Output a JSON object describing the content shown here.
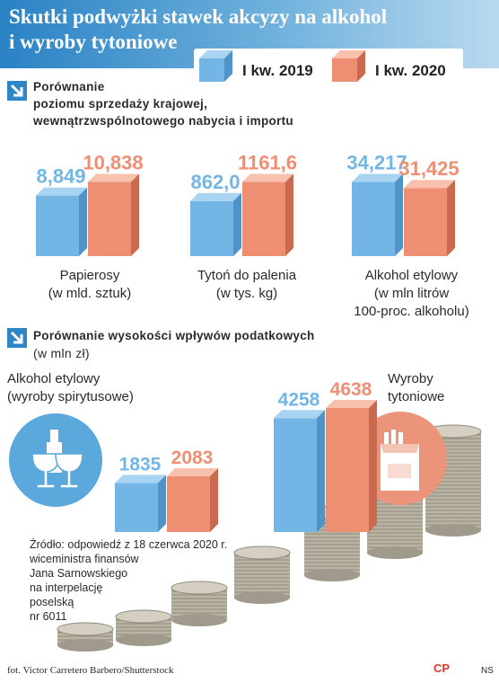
{
  "title": {
    "line1": "Skutki podwyżki stawek akcyzy na alkohol",
    "line2": "i wyroby tytoniowe"
  },
  "legend": [
    {
      "label": "I kw. 2019",
      "color": "#73b6e6"
    },
    {
      "label": "I kw. 2020",
      "color": "#ee8f74"
    }
  ],
  "section1": {
    "line1": "Porównanie",
    "line2": "poziomu sprzedaży krajowej,",
    "line3": "wewnątrzwspólnotowego nabycia i importu"
  },
  "section2": {
    "line1": "Porównanie wysokości wpływów podatkowych",
    "line2": "(w mln zł)"
  },
  "chart_data": [
    {
      "type": "bar",
      "series_names": [
        "I kw. 2019",
        "I kw. 2020"
      ],
      "groups": [
        {
          "label1": "Papierosy",
          "label2": "(w mld. sztuk)",
          "label3": "",
          "values": [
            8.849,
            10.838
          ],
          "display": [
            "8,849",
            "10,838"
          ]
        },
        {
          "label1": "Tytoń do palenia",
          "label2": "(w tys. kg)",
          "label3": "",
          "values": [
            862.0,
            1161.6
          ],
          "display": [
            "862,0",
            "1161,6"
          ]
        },
        {
          "label1": "Alkohol etylowy",
          "label2": "(w mln litrów",
          "label3": "100-proc. alkoholu)",
          "values": [
            34.217,
            31.425
          ],
          "display": [
            "34,217",
            "31,425"
          ]
        }
      ]
    },
    {
      "type": "bar",
      "series_names": [
        "I kw. 2019",
        "I kw. 2020"
      ],
      "groups": [
        {
          "label1": "Alkohol etylowy",
          "label2": "(wyroby spirytusowe)",
          "values": [
            1835,
            2083
          ],
          "display": [
            "1835",
            "2083"
          ]
        },
        {
          "label1": "Wyroby",
          "label2": "tytoniowe",
          "values": [
            4258,
            4638
          ],
          "display": [
            "4258",
            "4638"
          ]
        }
      ]
    }
  ],
  "source": {
    "line1": "Źródło: odpowiedź z 18 czerwca 2020 r.",
    "line2": "wiceministra finansów",
    "line3": "Jana Sarnowskiego",
    "line4": "na interpelację",
    "line5": "poselską",
    "line6": "nr 6011"
  },
  "credit": "fot. Victor Carretero Barbero/Shutterstock",
  "brand": "NS",
  "logo_text": "CP",
  "icons": [
    "arrow-down-right-icon",
    "wine-glasses-icon",
    "cigarette-pack-icon",
    "coins-image"
  ]
}
